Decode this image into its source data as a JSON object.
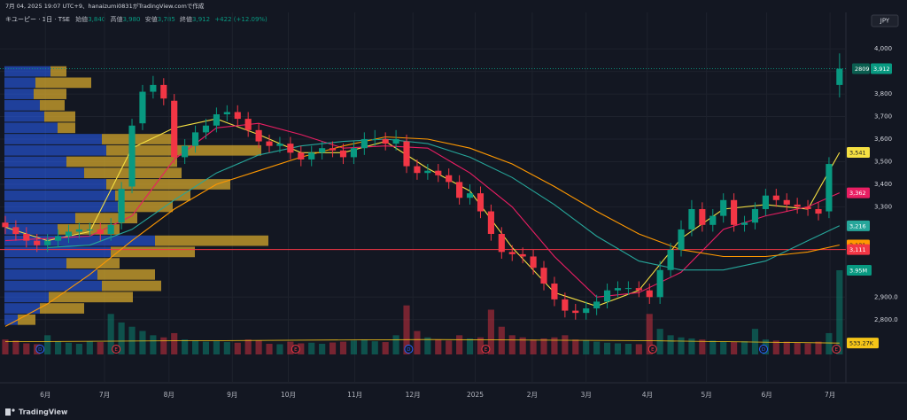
{
  "header": {
    "caption": "7月 04, 2025 19:07 UTC+9、hanaizumi0831がTradingView.comで作成",
    "symbol": "キユーピー · 1日 · TSE",
    "ohlc": [
      {
        "label": "始値",
        "value": "3,840"
      },
      {
        "label": "高値",
        "value": "3,980"
      },
      {
        "label": "安値",
        "value": "3,785"
      },
      {
        "label": "終値",
        "value": "3,912"
      }
    ],
    "change": "+422 (+12.09%)",
    "currency": "JPY"
  },
  "chart_data": {
    "type": "candlestick",
    "up_color": "#089981",
    "down_color": "#f23645",
    "xlim": [
      -0.5,
      79.6
    ],
    "ylim": [
      2646,
      4138
    ],
    "yticks": [
      {
        "value": 4000,
        "label": "4,000"
      },
      {
        "value": 3900,
        "label": "3,900"
      },
      {
        "value": 3800,
        "label": "3,800"
      },
      {
        "value": 3700,
        "label": "3,700"
      },
      {
        "value": 3600,
        "label": "3,600"
      },
      {
        "value": 3500,
        "label": "3,500"
      },
      {
        "value": 3400,
        "label": "3,400"
      },
      {
        "value": 3300,
        "label": "3,300"
      },
      {
        "value": 2900,
        "label": "2,900.0"
      },
      {
        "value": 2800,
        "label": "2,800.0"
      }
    ],
    "xticks": [
      {
        "value": 3.8,
        "label": "6月"
      },
      {
        "value": 9.4,
        "label": "7月"
      },
      {
        "value": 15.5,
        "label": "8月"
      },
      {
        "value": 21.5,
        "label": "9月"
      },
      {
        "value": 26.8,
        "label": "10月"
      },
      {
        "value": 33.1,
        "label": "11月"
      },
      {
        "value": 38.6,
        "label": "12月"
      },
      {
        "value": 44.5,
        "label": "2025"
      },
      {
        "value": 49.9,
        "label": "2月"
      },
      {
        "value": 55.0,
        "label": "3月"
      },
      {
        "value": 60.8,
        "label": "4月"
      },
      {
        "value": 66.4,
        "label": "5月"
      },
      {
        "value": 72.1,
        "label": "6月"
      },
      {
        "value": 78.1,
        "label": "7月"
      }
    ],
    "open": [
      3230,
      3210,
      3180,
      3150,
      3130,
      3150,
      3170,
      3190,
      3200,
      3200,
      3180,
      3230,
      3390,
      3670,
      3810,
      3840,
      3770,
      3520,
      3570,
      3630,
      3660,
      3710,
      3720,
      3690,
      3640,
      3590,
      3570,
      3580,
      3540,
      3510,
      3540,
      3560,
      3550,
      3520,
      3560,
      3600,
      3600,
      3580,
      3590,
      3480,
      3450,
      3460,
      3440,
      3410,
      3340,
      3360,
      3280,
      3180,
      3100,
      3090,
      3080,
      3030,
      2960,
      2890,
      2840,
      2830,
      2850,
      2880,
      2930,
      2940,
      2940,
      2930,
      2900,
      3020,
      3110,
      3200,
      3290,
      3220,
      3260,
      3330,
      3220,
      3230,
      3290,
      3350,
      3330,
      3310,
      3300,
      3290,
      3280,
      3840
    ],
    "high": [
      3260,
      3240,
      3210,
      3180,
      3180,
      3200,
      3220,
      3230,
      3230,
      3230,
      3250,
      3410,
      3690,
      3840,
      3880,
      3870,
      3800,
      3600,
      3660,
      3690,
      3740,
      3750,
      3750,
      3720,
      3670,
      3620,
      3610,
      3610,
      3570,
      3570,
      3590,
      3590,
      3580,
      3590,
      3630,
      3640,
      3630,
      3640,
      3620,
      3510,
      3490,
      3490,
      3470,
      3440,
      3400,
      3390,
      3310,
      3210,
      3130,
      3120,
      3110,
      3060,
      2990,
      2920,
      2870,
      2880,
      2910,
      2960,
      2970,
      2970,
      2970,
      2960,
      3060,
      3140,
      3240,
      3330,
      3320,
      3290,
      3360,
      3360,
      3260,
      3320,
      3380,
      3380,
      3360,
      3340,
      3330,
      3320,
      3520,
      3980
    ],
    "low": [
      3180,
      3150,
      3120,
      3100,
      3100,
      3120,
      3140,
      3160,
      3170,
      3150,
      3150,
      3200,
      3360,
      3640,
      3780,
      3750,
      3490,
      3490,
      3540,
      3600,
      3630,
      3680,
      3660,
      3610,
      3560,
      3540,
      3540,
      3510,
      3480,
      3480,
      3510,
      3520,
      3490,
      3490,
      3530,
      3570,
      3550,
      3550,
      3450,
      3420,
      3420,
      3410,
      3380,
      3310,
      3310,
      3250,
      3150,
      3070,
      3060,
      3050,
      3000,
      2930,
      2860,
      2810,
      2800,
      2800,
      2820,
      2850,
      2900,
      2910,
      2900,
      2870,
      2870,
      2990,
      3080,
      3170,
      3190,
      3190,
      3230,
      3190,
      3190,
      3200,
      3260,
      3300,
      3280,
      3270,
      3260,
      3240,
      3250,
      3785
    ],
    "close": [
      3210,
      3180,
      3150,
      3130,
      3150,
      3170,
      3190,
      3200,
      3200,
      3180,
      3220,
      3380,
      3660,
      3810,
      3840,
      3780,
      3520,
      3570,
      3630,
      3660,
      3710,
      3720,
      3690,
      3640,
      3590,
      3570,
      3580,
      3540,
      3510,
      3540,
      3560,
      3550,
      3520,
      3560,
      3600,
      3600,
      3580,
      3600,
      3480,
      3450,
      3460,
      3440,
      3410,
      3340,
      3360,
      3280,
      3180,
      3100,
      3090,
      3080,
      3030,
      2960,
      2890,
      2840,
      2830,
      2850,
      2880,
      2930,
      2940,
      2940,
      2930,
      2900,
      3020,
      3110,
      3200,
      3290,
      3220,
      3260,
      3330,
      3220,
      3230,
      3290,
      3350,
      3330,
      3310,
      3300,
      3290,
      3270,
      3490,
      3912
    ],
    "close_label": "3,912",
    "countdown": "2809",
    "volume": [
      700000,
      650000,
      520000,
      480000,
      900000,
      600000,
      550000,
      500000,
      620000,
      580000,
      1900000,
      1500000,
      1300000,
      1100000,
      900000,
      800000,
      1000000,
      700000,
      650000,
      600000,
      620000,
      580000,
      550000,
      700000,
      650000,
      500000,
      480000,
      600000,
      520000,
      550000,
      500000,
      560000,
      600000,
      650000,
      700000,
      620000,
      580000,
      900000,
      2300000,
      1100000,
      800000,
      700000,
      650000,
      900000,
      750000,
      800000,
      2100000,
      1300000,
      900000,
      800000,
      700000,
      750000,
      800000,
      900000,
      700000,
      650000,
      600000,
      550000,
      520000,
      500000,
      480000,
      1900000,
      1200000,
      900000,
      800000,
      750000,
      700000,
      650000,
      600000,
      580000,
      620000,
      1200000,
      700000,
      650000,
      600000,
      550000,
      520000,
      600000,
      1000000,
      3950000
    ],
    "last_volume_label": "3.95M",
    "y2lim": [
      0,
      15800000
    ],
    "volume_ma": {
      "color": "#f5c518",
      "x": [
        0,
        20,
        40,
        60,
        79
      ],
      "values": [
        600000,
        650000,
        700000,
        650000,
        533270
      ],
      "last_label": "533.27K"
    },
    "ma_lines": [
      {
        "color": "#f5e042",
        "x": [
          0,
          4,
          8,
          12,
          16,
          20,
          24,
          28,
          32,
          36,
          40,
          44,
          48,
          52,
          56,
          60,
          64,
          68,
          72,
          76,
          79
        ],
        "values": [
          3210,
          3150,
          3190,
          3560,
          3650,
          3690,
          3620,
          3540,
          3540,
          3590,
          3470,
          3370,
          3120,
          2920,
          2860,
          2930,
          3160,
          3290,
          3310,
          3290,
          3541
        ],
        "last_label": "3,541"
      },
      {
        "color": "#e91e63",
        "x": [
          0,
          4,
          8,
          12,
          16,
          20,
          24,
          28,
          32,
          36,
          40,
          44,
          48,
          52,
          56,
          60,
          64,
          68,
          72,
          76,
          79
        ],
        "values": [
          3150,
          3160,
          3170,
          3260,
          3510,
          3650,
          3670,
          3620,
          3560,
          3570,
          3560,
          3450,
          3300,
          3080,
          2900,
          2920,
          3010,
          3200,
          3260,
          3300,
          3362
        ],
        "last_label": "3,362"
      },
      {
        "color": "#26a69a",
        "x": [
          4,
          8,
          12,
          16,
          20,
          24,
          28,
          32,
          36,
          40,
          44,
          48,
          52,
          56,
          60,
          64,
          68,
          72,
          76,
          79
        ],
        "values": [
          3120,
          3130,
          3200,
          3330,
          3450,
          3530,
          3570,
          3590,
          3600,
          3580,
          3520,
          3430,
          3310,
          3170,
          3060,
          3020,
          3020,
          3060,
          3150,
          3216
        ],
        "last_label": "3,216"
      },
      {
        "color": "#ff9800",
        "x": [
          0,
          4,
          8,
          12,
          16,
          20,
          24,
          28,
          32,
          36,
          40,
          44,
          48,
          52,
          56,
          60,
          64,
          68,
          72,
          76,
          79
        ],
        "values": [
          2770,
          2870,
          3000,
          3150,
          3290,
          3400,
          3460,
          3520,
          3570,
          3610,
          3600,
          3560,
          3490,
          3390,
          3280,
          3180,
          3110,
          3080,
          3080,
          3100,
          3131
        ],
        "last_label": "3,131"
      }
    ],
    "hlines": [
      {
        "value": 3111,
        "label": "3,111",
        "color": "#f23645"
      }
    ],
    "volume_profile": {
      "up_color": "#2962ff",
      "down_color": "#d4a72c",
      "prices": [
        3900,
        3850,
        3800,
        3750,
        3700,
        3650,
        3600,
        3550,
        3500,
        3450,
        3400,
        3350,
        3300,
        3250,
        3200,
        3150,
        3100,
        3050,
        3000,
        2950,
        2900,
        2850,
        2800
      ],
      "up": [
        52,
        35,
        33,
        40,
        45,
        60,
        110,
        115,
        70,
        90,
        115,
        125,
        128,
        80,
        60,
        170,
        120,
        70,
        105,
        110,
        50,
        40,
        15
      ],
      "down": [
        18,
        63,
        37,
        28,
        35,
        20,
        85,
        175,
        125,
        110,
        140,
        85,
        62,
        70,
        70,
        128,
        95,
        60,
        65,
        67,
        95,
        50,
        20
      ]
    },
    "events": [
      {
        "x": 3.3,
        "label": "D"
      },
      {
        "x": 10.5,
        "label": "E"
      },
      {
        "x": 27.5,
        "label": "E"
      },
      {
        "x": 38.2,
        "label": "D"
      },
      {
        "x": 45.5,
        "label": "E"
      },
      {
        "x": 61.3,
        "label": "E"
      },
      {
        "x": 71.8,
        "label": "D"
      },
      {
        "x": 78.7,
        "label": "E"
      }
    ]
  },
  "footer": {
    "logo": "TradingView"
  }
}
